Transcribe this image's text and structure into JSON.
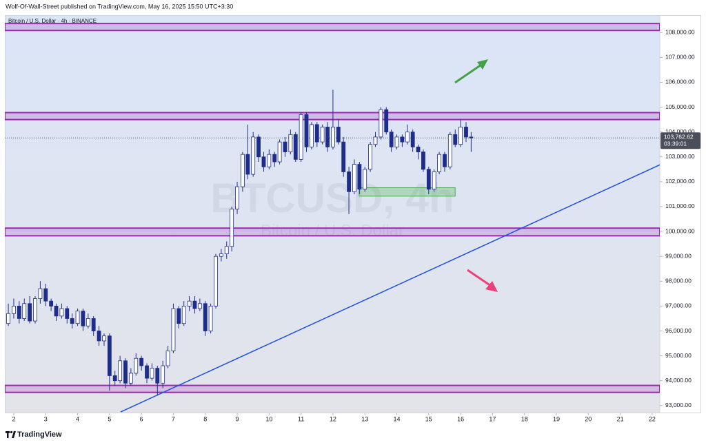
{
  "header": {
    "text": "Wolf-Of-Wall-Street published on TradingView.com, May 16, 2025 15:50 UTC+3:30"
  },
  "footer": {
    "brand": "TradingView"
  },
  "chart_data": {
    "type": "candlestick",
    "title": "Bitcoin / U.S. Dollar · 4h · BINANCE",
    "watermark": "BTCUSD, 4h",
    "watermark_subtitle": "Bitcoin / U.S. Dollar",
    "x": [
      1.83,
      2,
      2.17,
      2.33,
      2.5,
      2.67,
      2.83,
      3,
      3.17,
      3.33,
      3.5,
      3.67,
      3.83,
      4,
      4.17,
      4.33,
      4.5,
      4.67,
      4.83,
      5,
      5.17,
      5.33,
      5.5,
      5.67,
      5.83,
      6,
      6.17,
      6.33,
      6.5,
      6.67,
      6.83,
      7,
      7.17,
      7.33,
      7.5,
      7.67,
      7.83,
      8,
      8.17,
      8.33,
      8.5,
      8.67,
      8.83,
      9,
      9.17,
      9.33,
      9.5,
      9.67,
      9.83,
      10,
      10.17,
      10.33,
      10.5,
      10.67,
      10.83,
      11,
      11.17,
      11.33,
      11.5,
      11.67,
      11.83,
      12,
      12.17,
      12.33,
      12.5,
      12.67,
      12.83,
      13,
      13.17,
      13.33,
      13.5,
      13.67,
      13.83,
      14,
      14.17,
      14.33,
      14.5,
      14.67,
      14.83,
      15,
      15.17,
      15.33,
      15.5,
      15.67,
      15.83,
      16,
      16.17,
      16.33
    ],
    "open": [
      96300,
      96700,
      97000,
      96500,
      97100,
      96400,
      97300,
      97700,
      97200,
      97000,
      96600,
      96900,
      96500,
      96300,
      96800,
      96200,
      96500,
      96000,
      95600,
      95800,
      94200,
      94000,
      94800,
      93900,
      94300,
      94900,
      94600,
      94100,
      94500,
      93900,
      94600,
      95200,
      96900,
      96300,
      97000,
      97200,
      96900,
      97100,
      96000,
      97000,
      99000,
      99100,
      99400,
      100900,
      101800,
      103100,
      102300,
      103800,
      103000,
      102600,
      103100,
      102800,
      103600,
      103200,
      103900,
      102900,
      104700,
      103400,
      104300,
      103600,
      104200,
      103400,
      104200,
      103600,
      102400,
      101600,
      102700,
      101700,
      102500,
      103500,
      103800,
      104900,
      104000,
      103400,
      103800,
      103600,
      104000,
      103400,
      103200,
      102500,
      101700,
      102400,
      103100,
      102600,
      103900,
      103500,
      104200,
      103800
    ],
    "high": [
      97100,
      97300,
      97200,
      97300,
      97400,
      97400,
      98000,
      97900,
      97300,
      97100,
      97100,
      97000,
      96700,
      96900,
      96900,
      96700,
      96600,
      96200,
      95900,
      95900,
      94400,
      95000,
      94900,
      94500,
      95100,
      95000,
      94700,
      94700,
      94600,
      94800,
      95400,
      97100,
      97000,
      97200,
      97400,
      97400,
      97300,
      97200,
      97100,
      99100,
      99300,
      99600,
      101000,
      102000,
      103200,
      104300,
      104000,
      103900,
      103200,
      103300,
      103200,
      103700,
      103800,
      104100,
      104000,
      104800,
      104800,
      104400,
      104400,
      104300,
      104400,
      105700,
      104500,
      103800,
      102600,
      102900,
      102800,
      102600,
      103600,
      104000,
      105000,
      105000,
      104100,
      103900,
      103900,
      104300,
      104100,
      103500,
      103300,
      102600,
      102500,
      103200,
      103200,
      104000,
      104100,
      104500,
      104400,
      104000
    ],
    "low": [
      96200,
      96500,
      96300,
      96400,
      96300,
      96300,
      97100,
      97000,
      96800,
      96400,
      96500,
      96300,
      96100,
      96200,
      96000,
      96100,
      95800,
      95400,
      95400,
      93600,
      93800,
      93900,
      93700,
      93800,
      94200,
      94400,
      93900,
      94000,
      93400,
      93700,
      94500,
      95100,
      96100,
      96200,
      96800,
      96700,
      96800,
      95800,
      95900,
      96900,
      98800,
      98900,
      99200,
      100700,
      101600,
      102100,
      102200,
      102800,
      102400,
      102500,
      102600,
      102700,
      103000,
      103100,
      102800,
      102800,
      103200,
      103300,
      103400,
      103500,
      103200,
      103300,
      103500,
      102200,
      100700,
      101500,
      101500,
      101600,
      102400,
      103400,
      103700,
      103900,
      103200,
      103300,
      103400,
      103500,
      103200,
      102900,
      102400,
      101500,
      101600,
      102300,
      102400,
      102500,
      103400,
      103400,
      103600,
      103200
    ],
    "close": [
      96700,
      97000,
      96500,
      97100,
      96400,
      97300,
      97700,
      97200,
      97000,
      96600,
      96900,
      96500,
      96300,
      96800,
      96200,
      96500,
      96000,
      95600,
      95800,
      94200,
      94000,
      94800,
      93900,
      94300,
      94900,
      94600,
      94100,
      94500,
      93900,
      94600,
      95200,
      96900,
      96300,
      97000,
      97200,
      96900,
      97100,
      96000,
      97000,
      99000,
      99100,
      99400,
      100900,
      101800,
      103100,
      102300,
      103800,
      103000,
      102600,
      103100,
      102800,
      103600,
      103200,
      103900,
      102900,
      104700,
      103400,
      104300,
      103600,
      104200,
      103400,
      104200,
      103600,
      102400,
      101600,
      102700,
      101700,
      102500,
      103500,
      103800,
      104900,
      104000,
      103400,
      103800,
      103600,
      104000,
      103400,
      103200,
      102500,
      101700,
      102400,
      103100,
      102600,
      103900,
      103500,
      104200,
      103800,
      103762.62
    ],
    "up_color": "#ffffff",
    "down_color": "#1f2d8a",
    "outline_color": "#1f2d8a",
    "xlim": [
      1.72,
      22.24
    ],
    "xticks": [
      2,
      3,
      4,
      5,
      6,
      7,
      8,
      9,
      10,
      11,
      12,
      13,
      14,
      15,
      16,
      17,
      18,
      19,
      20,
      21,
      22
    ],
    "ylim": [
      92690,
      108700
    ],
    "yticks": [
      {
        "value": 93000,
        "label": "93,000.00"
      },
      {
        "value": 94000,
        "label": "94,000.00"
      },
      {
        "value": 95000,
        "label": "95,000.00"
      },
      {
        "value": 96000,
        "label": "96,000.00"
      },
      {
        "value": 97000,
        "label": "97,000.00"
      },
      {
        "value": 98000,
        "label": "98,000.00"
      },
      {
        "value": 99000,
        "label": "99,000.00"
      },
      {
        "value": 100000,
        "label": "100,000.00"
      },
      {
        "value": 101000,
        "label": "101,000.00"
      },
      {
        "value": 102000,
        "label": "102,000.00"
      },
      {
        "value": 103000,
        "label": "103,000.00"
      },
      {
        "value": 104000,
        "label": "104,000.00"
      },
      {
        "value": 105000,
        "label": "105,000.00"
      },
      {
        "value": 106000,
        "label": "106,000.00"
      },
      {
        "value": 107000,
        "label": "107,000.00"
      },
      {
        "value": 108000,
        "label": "108,000.00"
      }
    ],
    "last_price": {
      "value": 103762.62,
      "label": "103,762.62"
    },
    "countdown": "03:39:01",
    "zones": [
      {
        "low": 108084,
        "high": 108364
      },
      {
        "low": 104501,
        "high": 104781
      },
      {
        "low": 99827,
        "high": 100135
      },
      {
        "low": 93529,
        "high": 93809
      }
    ],
    "zone_color": "#9c27b0",
    "box": {
      "x0": 12.82,
      "x1": 15.83,
      "low": 101420,
      "high": 101760
    },
    "box_color": "#4caf50",
    "trend_line": {
      "x": [
        5.35,
        22.24
      ],
      "y": [
        92745,
        102680
      ],
      "color": "#1e4fd8"
    }
  }
}
